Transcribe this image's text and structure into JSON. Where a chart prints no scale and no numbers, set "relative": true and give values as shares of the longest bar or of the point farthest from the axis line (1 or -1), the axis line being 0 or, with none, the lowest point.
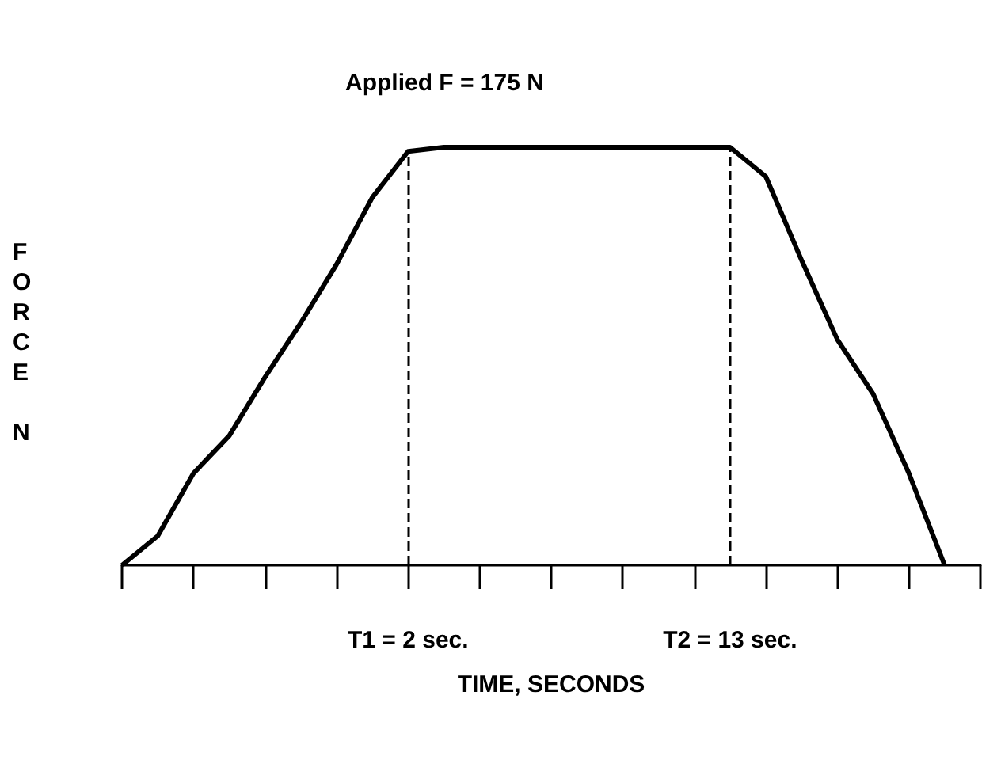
{
  "chart_data": {
    "type": "line",
    "relative": true,
    "xlabel": "TIME, SECONDS",
    "ylabel": "FORCE N",
    "categories": [
      null,
      null,
      null,
      null,
      null,
      null,
      null,
      null,
      null,
      null,
      null,
      null,
      null,
      null,
      null,
      null,
      null,
      null,
      null,
      null,
      null,
      null,
      null,
      null,
      null
    ],
    "series": [
      {
        "color": "#000000",
        "values": [
          0,
          0.07,
          0.22,
          0.31,
          0.45,
          0.58,
          0.72,
          0.88,
          0.99,
          1,
          1,
          1,
          1,
          1,
          1,
          1,
          1,
          1,
          0.93,
          0.73,
          0.54,
          0.41,
          0.22,
          0,
          null
        ]
      }
    ],
    "annotations": [
      "Applied F = 175 N",
      "T1 = 2 sec.",
      "T2 = 13 sec."
    ],
    "marker": "none",
    "grid": false
  }
}
